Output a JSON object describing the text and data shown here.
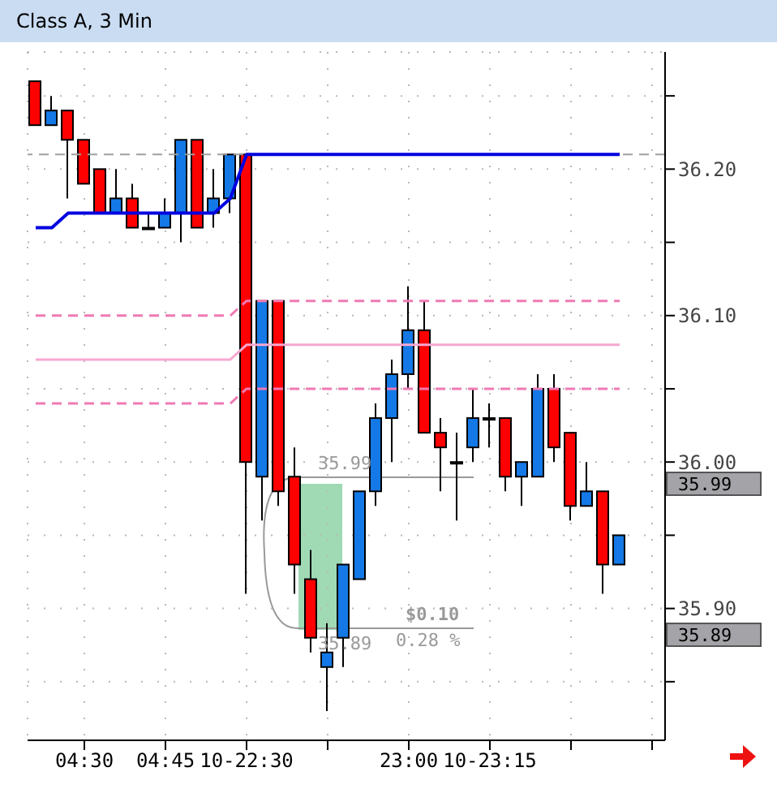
{
  "chart_data": {
    "type": "candlestick",
    "title": "Class A, 3 Min",
    "categories": [
      null,
      null,
      null,
      "04:30",
      null,
      null,
      null,
      null,
      "04:45",
      null,
      null,
      null,
      null,
      "10-22:30",
      null,
      null,
      null,
      null,
      null,
      null,
      null,
      null,
      null,
      "23:00",
      null,
      null,
      null,
      null,
      "10-23:15",
      null,
      null,
      null,
      null,
      null,
      null,
      null,
      null
    ],
    "ohlc": [
      [
        36.26,
        36.26,
        36.23,
        36.23
      ],
      [
        36.23,
        36.25,
        36.23,
        36.24
      ],
      [
        36.24,
        36.24,
        36.18,
        36.22
      ],
      [
        36.22,
        36.22,
        36.19,
        36.19
      ],
      [
        36.2,
        36.2,
        36.17,
        36.17
      ],
      [
        36.17,
        36.2,
        36.17,
        36.18
      ],
      [
        36.18,
        36.19,
        36.16,
        36.16
      ],
      [
        36.16,
        36.17,
        36.16,
        36.16
      ],
      [
        36.16,
        36.18,
        36.16,
        36.17
      ],
      [
        36.17,
        36.22,
        36.15,
        36.22
      ],
      [
        36.22,
        36.22,
        36.16,
        36.16
      ],
      [
        36.17,
        36.2,
        36.16,
        36.18
      ],
      [
        36.18,
        36.21,
        36.17,
        36.21
      ],
      [
        36.21,
        36.21,
        35.91,
        36.0
      ],
      [
        35.99,
        36.11,
        35.96,
        36.11
      ],
      [
        36.11,
        36.11,
        35.97,
        35.98
      ],
      [
        35.99,
        36.01,
        35.91,
        35.93
      ],
      [
        35.92,
        35.94,
        35.87,
        35.88
      ],
      [
        35.86,
        35.89,
        35.83,
        35.87
      ],
      [
        35.88,
        35.93,
        35.86,
        35.93
      ],
      [
        35.92,
        35.98,
        35.92,
        35.98
      ],
      [
        35.98,
        36.04,
        35.97,
        36.03
      ],
      [
        36.03,
        36.07,
        36.0,
        36.06
      ],
      [
        36.06,
        36.12,
        36.05,
        36.09
      ],
      [
        36.09,
        36.11,
        36.02,
        36.02
      ],
      [
        36.02,
        36.03,
        35.98,
        36.01
      ],
      [
        36.0,
        36.02,
        35.96,
        36.0
      ],
      [
        36.01,
        36.05,
        36.0,
        36.03
      ],
      [
        36.03,
        36.04,
        36.01,
        36.03
      ],
      [
        36.03,
        36.03,
        35.98,
        35.99
      ],
      [
        35.99,
        36.0,
        35.97,
        36.0
      ],
      [
        35.99,
        36.06,
        35.99,
        36.05
      ],
      [
        36.05,
        36.06,
        36.0,
        36.01
      ],
      [
        36.02,
        36.02,
        35.96,
        35.97
      ],
      [
        35.97,
        36.0,
        35.97,
        35.98
      ],
      [
        35.98,
        35.98,
        35.91,
        35.93
      ],
      [
        35.93,
        35.95,
        35.93,
        35.95
      ]
    ],
    "colors": [
      "#ff0000",
      "#1479e6",
      "#ff0000",
      "#ff0000",
      "#ff0000",
      "#1479e6",
      "#ff0000",
      "#000000",
      "#1479e6",
      "#1479e6",
      "#ff0000",
      "#1479e6",
      "#1479e6",
      "#ff0000",
      "#1479e6",
      "#ff0000",
      "#ff0000",
      "#ff0000",
      "#1479e6",
      "#1479e6",
      "#1479e6",
      "#1479e6",
      "#1479e6",
      "#1479e6",
      "#ff0000",
      "#ff0000",
      "#000000",
      "#1479e6",
      "#000000",
      "#ff0000",
      "#1479e6",
      "#1479e6",
      "#ff0000",
      "#ff0000",
      "#1479e6",
      "#ff0000",
      "#1479e6"
    ],
    "series": [
      {
        "type": "line",
        "color": "#0000e0",
        "line_style": "solid",
        "values": [
          36.16,
          36.16,
          36.17,
          36.17,
          36.17,
          36.17,
          36.17,
          36.17,
          36.17,
          36.17,
          36.17,
          36.17,
          36.18,
          36.21,
          36.21,
          36.21,
          36.21,
          36.21,
          36.21,
          36.21,
          36.21,
          36.21,
          36.21,
          36.21,
          36.21,
          36.21,
          36.21,
          36.21,
          36.21,
          36.21,
          36.21,
          36.21,
          36.21,
          36.21,
          36.21,
          36.21,
          36.21
        ]
      },
      {
        "type": "line",
        "color": "#f7a8d0",
        "line_style": "solid",
        "values": [
          36.07,
          36.07,
          36.07,
          36.07,
          36.07,
          36.07,
          36.07,
          36.07,
          36.07,
          36.07,
          36.07,
          36.07,
          36.07,
          36.08,
          36.08,
          36.08,
          36.08,
          36.08,
          36.08,
          36.08,
          36.08,
          36.08,
          36.08,
          36.08,
          36.08,
          36.08,
          36.08,
          36.08,
          36.08,
          36.08,
          36.08,
          36.08,
          36.08,
          36.08,
          36.08,
          36.08,
          36.08
        ]
      },
      {
        "type": "line",
        "color": "#f07ab4",
        "line_style": "dashed",
        "values": [
          36.1,
          36.1,
          36.1,
          36.1,
          36.1,
          36.1,
          36.1,
          36.1,
          36.1,
          36.1,
          36.1,
          36.1,
          36.1,
          36.11,
          36.11,
          36.11,
          36.11,
          36.11,
          36.11,
          36.11,
          36.11,
          36.11,
          36.11,
          36.11,
          36.11,
          36.11,
          36.11,
          36.11,
          36.11,
          36.11,
          36.11,
          36.11,
          36.11,
          36.11,
          36.11,
          36.11,
          36.11
        ]
      },
      {
        "type": "line",
        "color": "#f07ab4",
        "line_style": "dashed",
        "values": [
          36.04,
          36.04,
          36.04,
          36.04,
          36.04,
          36.04,
          36.04,
          36.04,
          36.04,
          36.04,
          36.04,
          36.04,
          36.04,
          36.05,
          36.05,
          36.05,
          36.05,
          36.05,
          36.05,
          36.05,
          36.05,
          36.05,
          36.05,
          36.05,
          36.05,
          36.05,
          36.05,
          36.05,
          36.05,
          36.05,
          36.05,
          36.05,
          36.05,
          36.05,
          36.05,
          36.05,
          36.05
        ]
      }
    ],
    "ylim": [
      35.81,
      36.28
    ],
    "yticks": [
      {
        "value": 35.85,
        "label": null
      },
      {
        "value": 35.9,
        "label": "35.90"
      },
      {
        "value": 35.95,
        "label": null
      },
      {
        "value": 36.0,
        "label": "36.00"
      },
      {
        "value": 36.05,
        "label": null
      },
      {
        "value": 36.1,
        "label": "36.10"
      },
      {
        "value": 36.15,
        "label": null
      },
      {
        "value": 36.2,
        "label": "36.20"
      },
      {
        "value": 36.25,
        "label": null
      }
    ],
    "ref_lines": [
      {
        "axis": "y",
        "value": 36.21,
        "color": "#a0a0a0",
        "line_style": "dashed"
      }
    ],
    "annotations": [
      "35.99",
      "35.89",
      "$0.10",
      "0.28 %",
      "35.99",
      "35.89"
    ],
    "grid": true
  }
}
